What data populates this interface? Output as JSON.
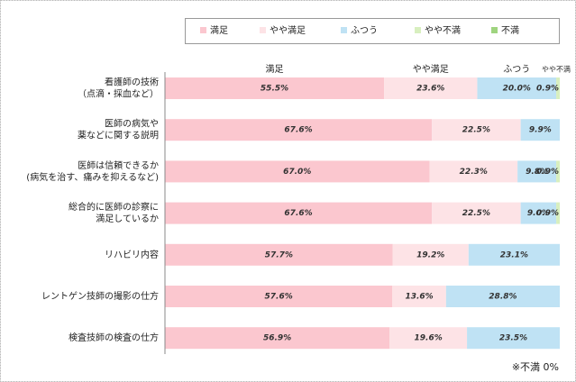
{
  "chart_data": {
    "type": "stacked-barh",
    "categories": [
      [
        "看護師の技術",
        "（点滴・採血など）"
      ],
      [
        "医師の病気や",
        "薬などに関する説明"
      ],
      [
        "医師は信頼できるか",
        "(病気を治す、痛みを抑えるなど)"
      ],
      [
        "総合的に医師の診察に",
        "満足しているか"
      ],
      [
        "リハビリ内容"
      ],
      [
        "レントゲン技師の撮影の仕方"
      ],
      [
        "検査技師の検査の仕方"
      ]
    ],
    "series": [
      {
        "name": "満足",
        "color": "#fbc7cf",
        "values": [
          55.5,
          67.6,
          67.0,
          67.6,
          57.7,
          57.6,
          56.9
        ],
        "value_labels": [
          "55.5%",
          "67.6%",
          "67.0%",
          "67.6%",
          "57.7%",
          "57.6%",
          "56.9%"
        ]
      },
      {
        "name": "やや満足",
        "color": "#fde3e6",
        "values": [
          23.6,
          22.5,
          22.3,
          22.5,
          19.2,
          13.6,
          19.6
        ],
        "value_labels": [
          "23.6%",
          "22.5%",
          "22.3%",
          "22.5%",
          "19.2%",
          "13.6%",
          "19.6%"
        ]
      },
      {
        "name": "ふつう",
        "color": "#bfe2f4",
        "values": [
          20.0,
          9.9,
          9.8,
          9.0,
          23.1,
          28.8,
          23.5
        ],
        "value_labels": [
          "20.0%",
          "9.9%",
          "9.8%",
          "9.0%",
          "23.1%",
          "28.8%",
          "23.5%"
        ]
      },
      {
        "name": "やや不満",
        "color": "#d8efbf",
        "values": [
          0.9,
          0,
          0.9,
          0.9,
          0,
          0,
          0
        ],
        "value_labels": [
          "0.9%",
          null,
          "0.9%",
          "0.9%",
          null,
          null,
          null
        ]
      },
      {
        "name": "不満",
        "color": "#9fd47f",
        "values": [
          0,
          0,
          0,
          0,
          0,
          0,
          0
        ]
      }
    ],
    "xlim": [
      0,
      100
    ],
    "note": "※不満 0%"
  }
}
